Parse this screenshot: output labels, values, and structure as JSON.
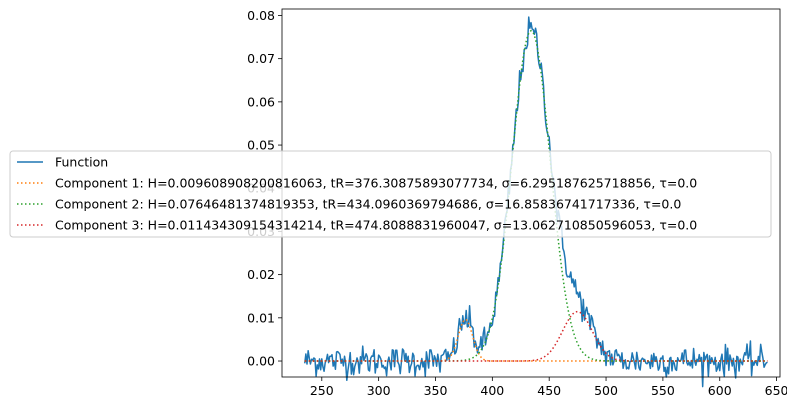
{
  "chart_data": {
    "type": "line",
    "title": "",
    "xlabel": "",
    "ylabel": "",
    "xlim": [
      215,
      653
    ],
    "ylim": [
      -0.0037,
      0.0815
    ],
    "xticks": [
      250,
      300,
      350,
      400,
      450,
      500,
      550,
      600,
      650
    ],
    "yticks": [
      0.0,
      0.01,
      0.02,
      0.03,
      0.04,
      0.05,
      0.06,
      0.07,
      0.08
    ],
    "x_range": [
      235,
      642
    ],
    "grid": false,
    "legend_position": "center-left",
    "colors": {
      "function": "#1f77b4",
      "component1": "#ff7f0e",
      "component2": "#2ca02c",
      "component3": "#d62728"
    },
    "series": [
      {
        "name": "Function",
        "style": "solid",
        "color": "#1f77b4",
        "description_values": "noisy sum of components, peak ≈ 0.0775 at x ≈ 432"
      },
      {
        "name": "Component 1: H=0.009608908200816063, tR=376.30875893077734, σ=6.295187625718856, τ=0.0",
        "style": "dotted",
        "color": "#ff7f0e",
        "H": 0.009608908200816063,
        "tR": 376.30875893077734,
        "sigma": 6.295187625718856,
        "tau": 0.0
      },
      {
        "name": "Component 2: H=0.07646481374819353, tR=434.0960369794686, σ=16.85836741717336, τ=0.0",
        "style": "dotted",
        "color": "#2ca02c",
        "H": 0.07646481374819353,
        "tR": 434.0960369794686,
        "sigma": 16.85836741717336,
        "tau": 0.0
      },
      {
        "name": "Component 3: H=0.011434309154314214, tR=474.8088831960047, σ=13.062710850596053, τ=0.0",
        "style": "dotted",
        "color": "#d62728",
        "H": 0.011434309154314214,
        "tR": 474.8088831960047,
        "sigma": 13.062710850596053,
        "tau": 0.0
      }
    ]
  }
}
